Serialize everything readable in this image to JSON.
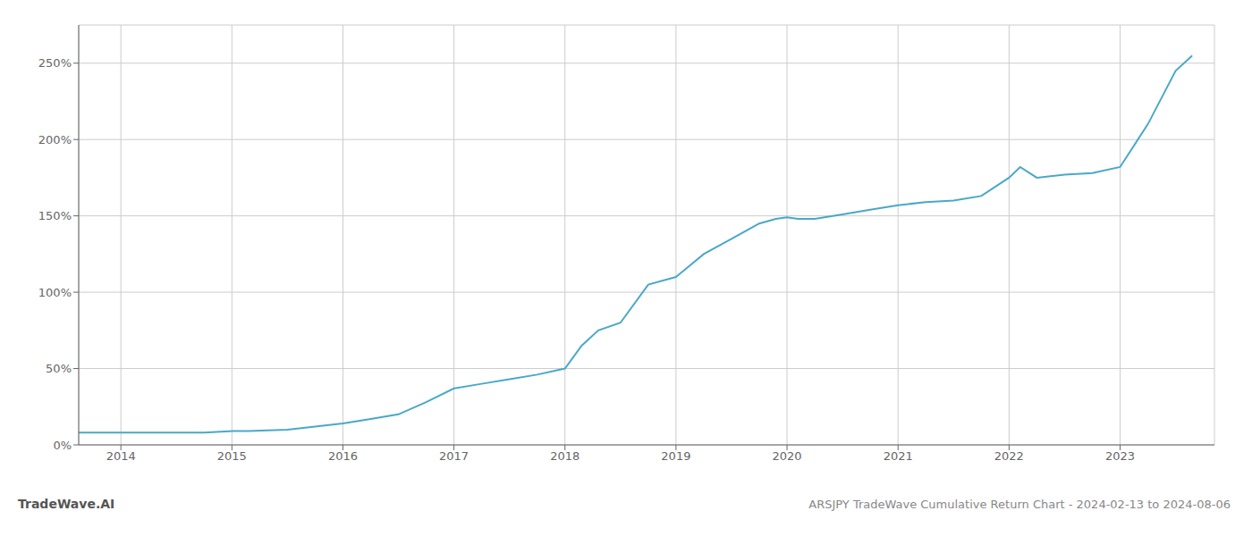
{
  "chart_data": {
    "type": "line",
    "title": "ARSJPY TradeWave Cumulative Return Chart - 2024-02-13 to 2024-08-06",
    "annotations": [
      "TradeWave.AI"
    ],
    "color": "#4aa8c8",
    "grid": true,
    "x": [
      2013.62,
      2013.75,
      2014.0,
      2014.25,
      2014.5,
      2014.75,
      2015.0,
      2015.15,
      2015.5,
      2015.75,
      2016.0,
      2016.25,
      2016.5,
      2016.75,
      2017.0,
      2017.25,
      2017.5,
      2017.75,
      2018.0,
      2018.15,
      2018.3,
      2018.5,
      2018.75,
      2019.0,
      2019.25,
      2019.5,
      2019.75,
      2019.9,
      2020.0,
      2020.1,
      2020.25,
      2020.5,
      2020.75,
      2021.0,
      2021.25,
      2021.5,
      2021.75,
      2022.0,
      2022.1,
      2022.25,
      2022.5,
      2022.75,
      2023.0,
      2023.25,
      2023.5,
      2023.65
    ],
    "values": [
      8,
      8,
      8,
      8,
      8,
      8,
      9,
      9,
      10,
      12,
      14,
      17,
      20,
      28,
      37,
      40,
      43,
      46,
      50,
      65,
      75,
      80,
      105,
      110,
      125,
      135,
      145,
      148,
      149,
      148,
      148,
      151,
      154,
      157,
      159,
      160,
      163,
      175,
      182,
      175,
      177,
      178,
      182,
      210,
      245,
      255
    ],
    "xlim": [
      2013.62,
      2023.85
    ],
    "xticks": [
      2014,
      2015,
      2016,
      2017,
      2018,
      2019,
      2020,
      2021,
      2022,
      2023
    ],
    "ylim": [
      0,
      275
    ],
    "yticks": [
      {
        "value": 0,
        "label": "0%"
      },
      {
        "value": 50,
        "label": "50%"
      },
      {
        "value": 100,
        "label": "100%"
      },
      {
        "value": 150,
        "label": "150%"
      },
      {
        "value": 200,
        "label": "200%"
      },
      {
        "value": 250,
        "label": "250%"
      }
    ]
  }
}
